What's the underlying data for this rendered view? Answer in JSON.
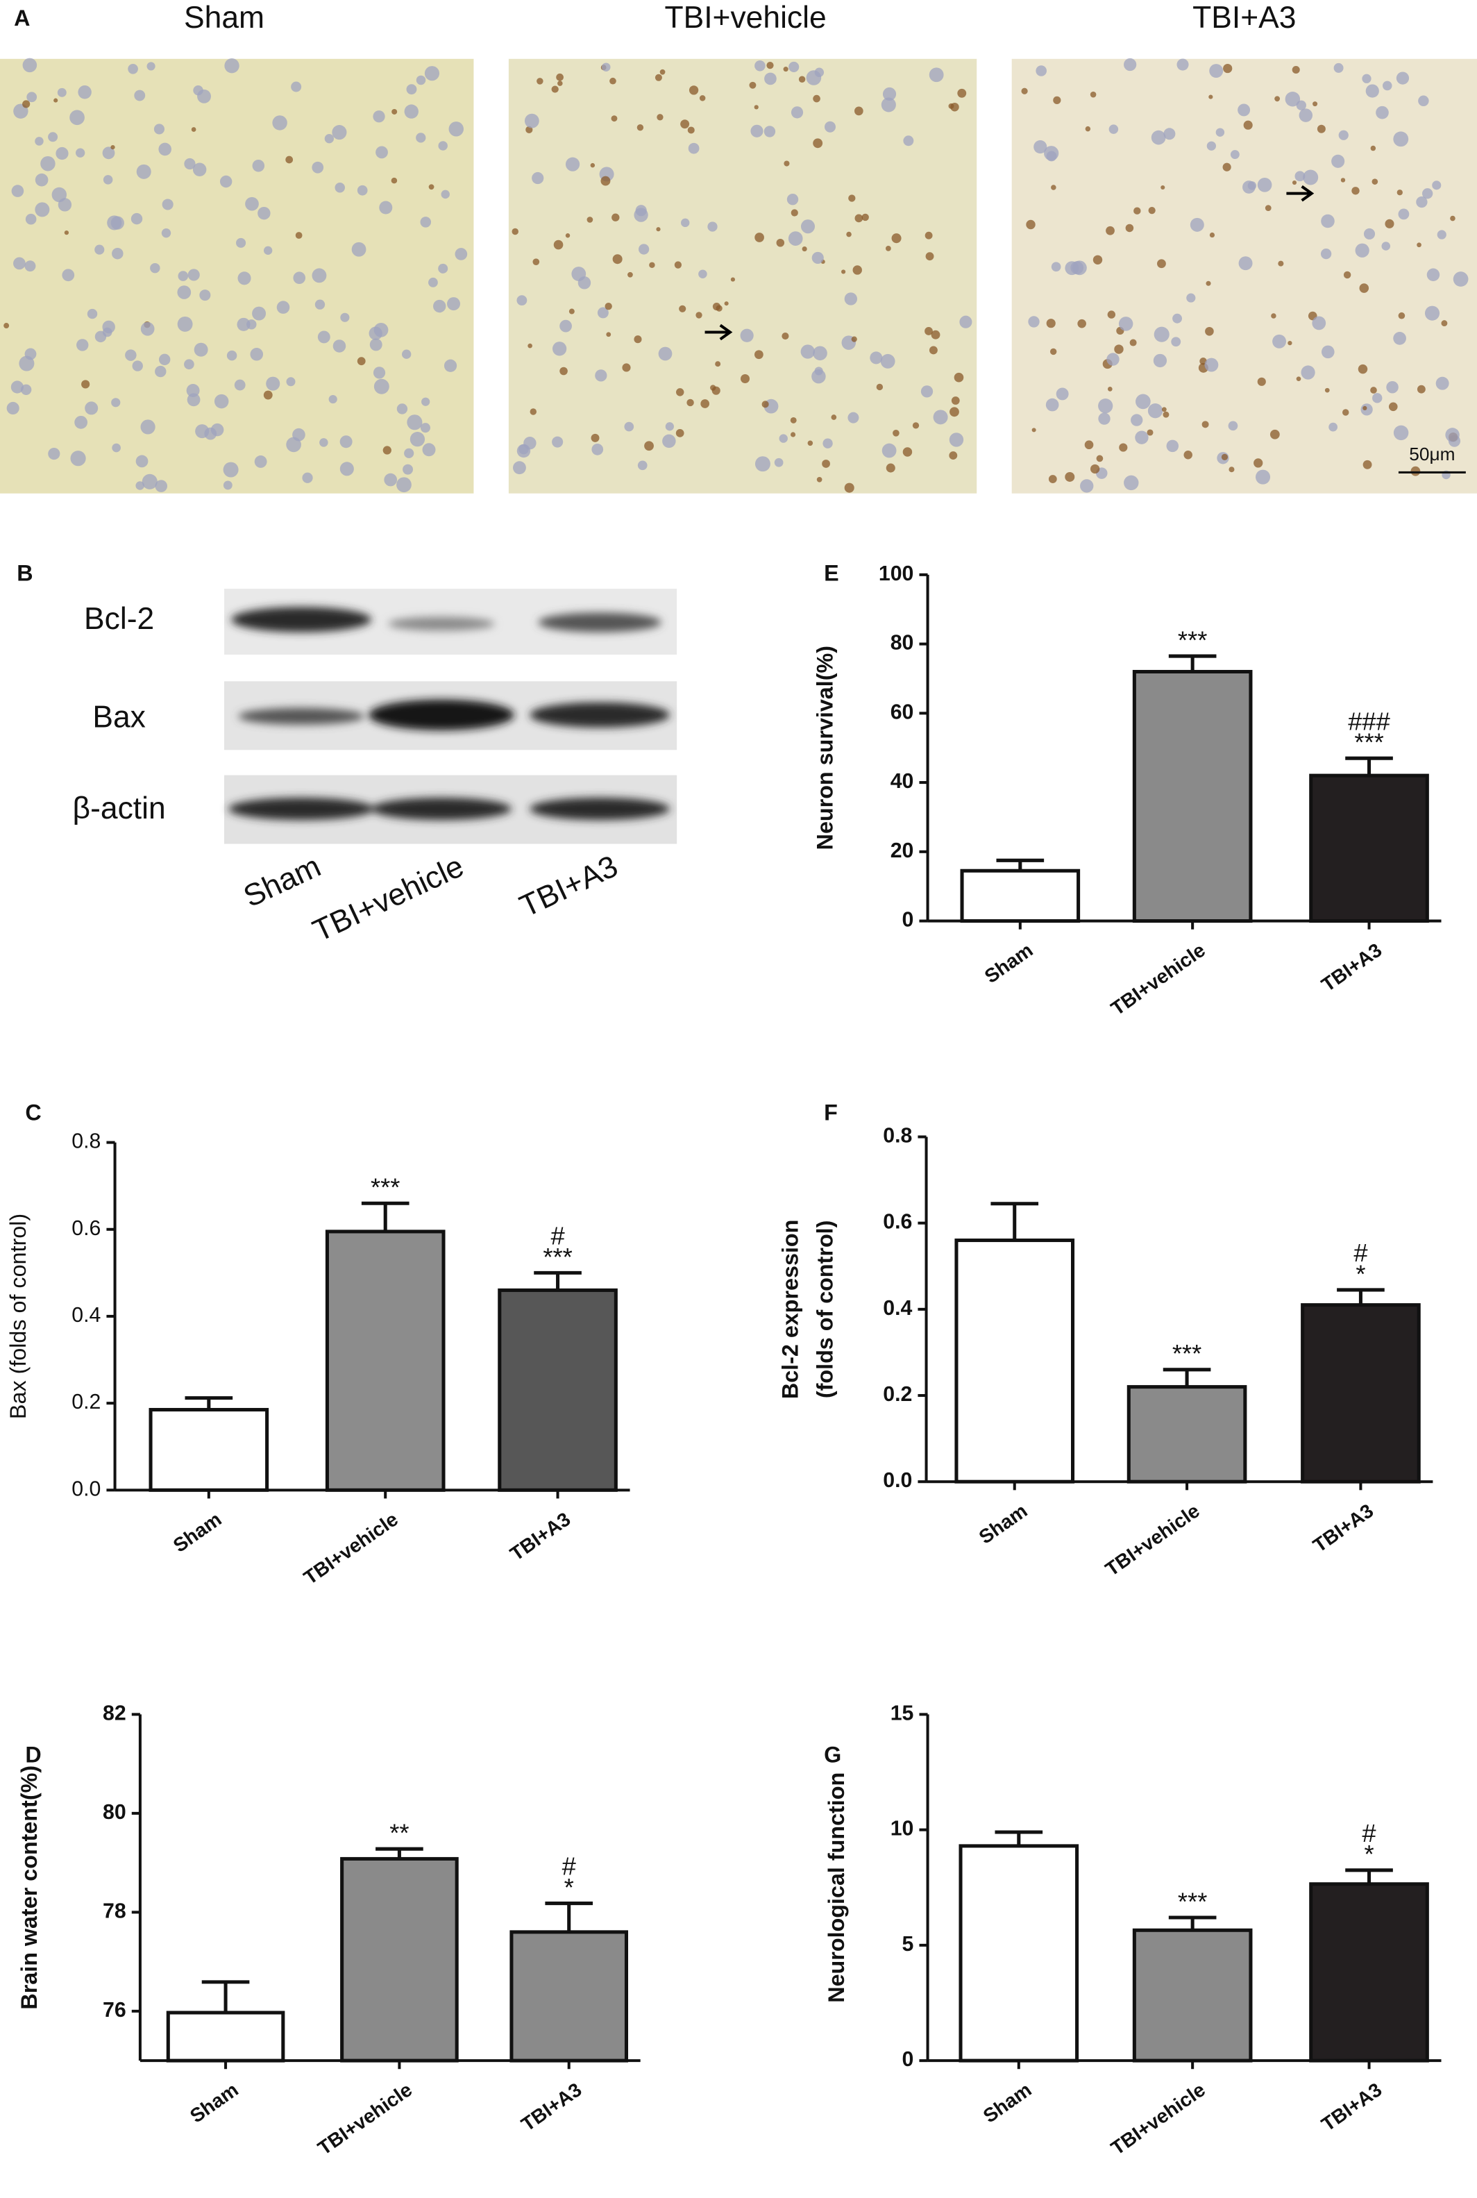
{
  "panel_a": {
    "panel": "A",
    "titles": [
      "Sham",
      "TBI+vehicle",
      "TBI+A3"
    ],
    "scale_bar": "50μm"
  },
  "panel_b": {
    "panel": "B",
    "rows": [
      "Bcl-2",
      "Bax",
      "β-actin"
    ],
    "lanes": [
      "Sham",
      "TBI+vehicle",
      "TBI+A3"
    ]
  },
  "chart_data": [
    {
      "type": "bar",
      "panel": "E",
      "ylabel": [
        "Neuron survival(%)"
      ],
      "categories": [
        "Sham",
        "TBI+vehicle",
        "TBI+A3"
      ],
      "values": [
        14.5,
        72,
        42
      ],
      "errors": [
        3,
        4.5,
        5
      ],
      "colors": [
        "#ffffff",
        "#8a8a8a",
        "#231f20"
      ],
      "annotations": [
        null,
        [
          "***"
        ],
        [
          "###",
          "***"
        ]
      ],
      "ylim": [
        0,
        100
      ],
      "yticks": [
        0,
        20,
        40,
        60,
        80,
        100
      ]
    },
    {
      "type": "bar",
      "panel": "C",
      "ylabel": [
        "Bax (folds of control)"
      ],
      "categories": [
        "Sham",
        "TBI+vehicle",
        "TBI+A3"
      ],
      "values": [
        0.185,
        0.595,
        0.46
      ],
      "errors": [
        0.027,
        0.065,
        0.04
      ],
      "colors": [
        "#ffffff",
        "#8c8c8c",
        "#575757"
      ],
      "annotations": [
        null,
        [
          "***"
        ],
        [
          "#",
          "***"
        ]
      ],
      "ylim": [
        0,
        0.8
      ],
      "yticks": [
        {
          "value": 0,
          "label": "0.0"
        },
        0.2,
        0.4,
        0.6,
        0.8
      ]
    },
    {
      "type": "bar",
      "panel": "F",
      "ylabel": [
        "Bcl-2 expression",
        "(folds of control)"
      ],
      "categories": [
        "Sham",
        "TBI+vehicle",
        "TBI+A3"
      ],
      "values": [
        0.56,
        0.22,
        0.41
      ],
      "errors": [
        0.085,
        0.04,
        0.035
      ],
      "colors": [
        "#ffffff",
        "#8a8a8a",
        "#231f20"
      ],
      "annotations": [
        null,
        [
          "***"
        ],
        [
          "#",
          "*"
        ]
      ],
      "ylim": [
        0,
        0.8
      ],
      "yticks": [
        {
          "value": 0,
          "label": "0.0"
        },
        0.2,
        0.4,
        0.6,
        0.8
      ]
    },
    {
      "type": "bar",
      "panel": "D",
      "ylabel": [
        "Brain water content(%)"
      ],
      "categories": [
        "Sham",
        "TBI+vehicle",
        "TBI+A3"
      ],
      "values": [
        75.97,
        79.08,
        77.6
      ],
      "errors": [
        0.62,
        0.2,
        0.58
      ],
      "colors": [
        "#ffffff",
        "#8a8a8a",
        "#8a8a8a"
      ],
      "annotations": [
        null,
        [
          "**"
        ],
        [
          "#",
          "*"
        ]
      ],
      "ylim": [
        75,
        82
      ],
      "yticks": [
        76,
        78,
        80,
        82
      ]
    },
    {
      "type": "bar",
      "panel": "G",
      "ylabel": [
        "Neurological function"
      ],
      "categories": [
        "Sham",
        "TBI+vehicle",
        "TBI+A3"
      ],
      "values": [
        9.3,
        5.65,
        7.65
      ],
      "errors": [
        0.6,
        0.55,
        0.6
      ],
      "colors": [
        "#ffffff",
        "#8a8a8a",
        "#231f20"
      ],
      "annotations": [
        null,
        [
          "***"
        ],
        [
          "#",
          "*"
        ]
      ],
      "ylim": [
        0,
        15
      ],
      "yticks": [
        0,
        5,
        10,
        15
      ]
    }
  ]
}
